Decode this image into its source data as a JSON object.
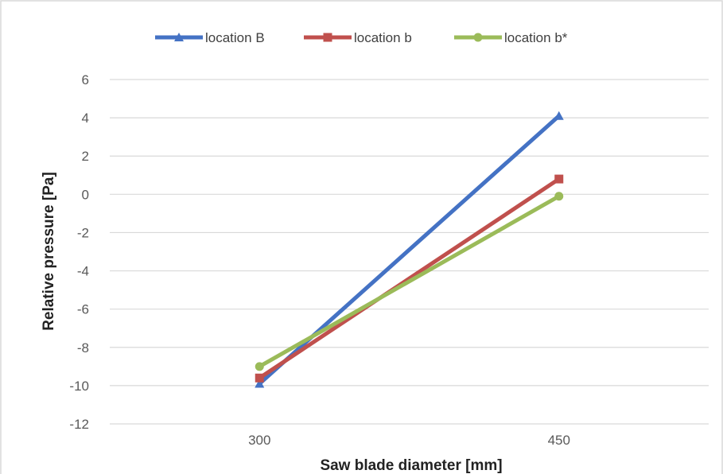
{
  "chart_data": {
    "type": "line",
    "title": "",
    "xlabel": "Saw blade diameter [mm]",
    "ylabel": "Relative pressure [Pa]",
    "categories": [
      "300",
      "450"
    ],
    "ylim": [
      -12,
      6
    ],
    "ytick_step": 2,
    "yticks": [
      "6",
      "4",
      "2",
      "0",
      "-2",
      "-4",
      "-6",
      "-8",
      "-10",
      "-12"
    ],
    "grid": true,
    "legend_position": "top",
    "series": [
      {
        "name": "location B",
        "values": [
          -9.9,
          4.1
        ],
        "color": "#4472C4",
        "marker": "triangle"
      },
      {
        "name": "location b",
        "values": [
          -9.6,
          0.8
        ],
        "color": "#C0504D",
        "marker": "square"
      },
      {
        "name": "location b*",
        "values": [
          -9.0,
          -0.1
        ],
        "color": "#9BBB59",
        "marker": "circle"
      }
    ]
  }
}
